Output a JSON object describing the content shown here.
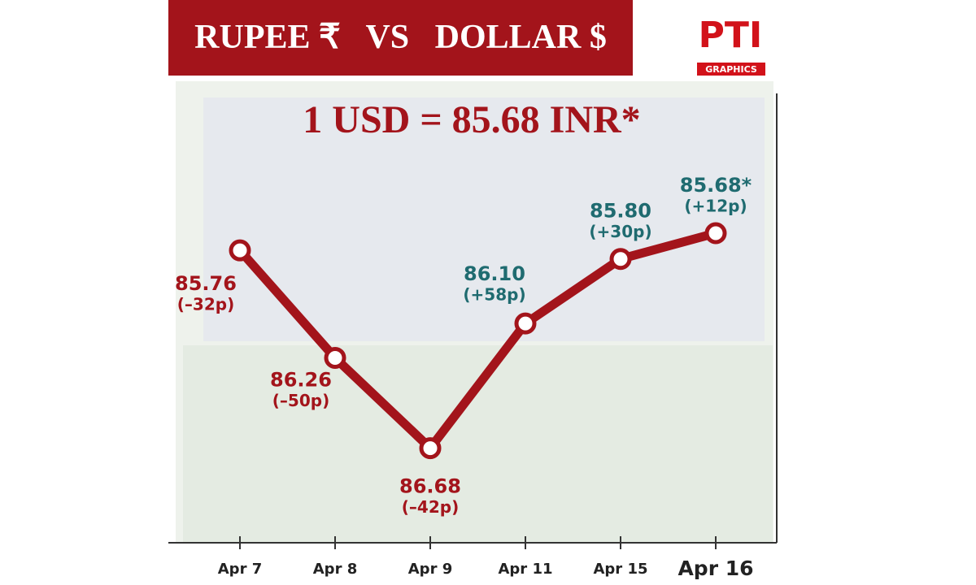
{
  "chart_data": {
    "type": "line",
    "title": "RUPEE ₹   VS   DOLLAR $",
    "subtitle": "1 USD = 85.68 INR*",
    "logo": {
      "text": "PTI",
      "subtext": "GRAPHICS"
    },
    "categories": [
      "Apr 7",
      "Apr 8",
      "Apr 9",
      "Apr 11",
      "Apr 15",
      "Apr 16"
    ],
    "values": [
      85.76,
      86.26,
      86.68,
      86.1,
      85.8,
      85.68
    ],
    "value_labels": [
      "85.76",
      "86.26",
      "86.68",
      "86.10",
      "85.80",
      "85.68*"
    ],
    "change_labels": [
      "(–32p)",
      "(–50p)",
      "(–42p)",
      "(+58p)",
      "(+30p)",
      "(+12p)"
    ],
    "label_colors": [
      "#a3141b",
      "#a3141b",
      "#a3141b",
      "#1f6b70",
      "#1f6b70",
      "#1f6b70"
    ],
    "color": "#a3141b",
    "ylim": [
      85.03,
      87.12
    ],
    "y_inverted": true
  }
}
